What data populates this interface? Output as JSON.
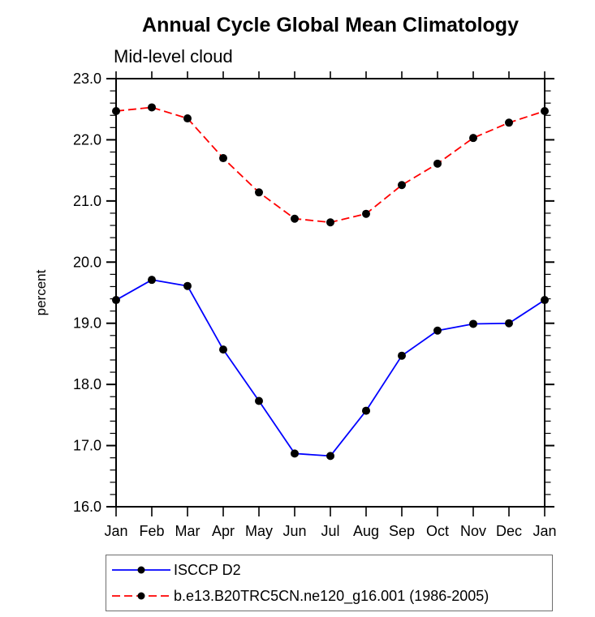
{
  "chart_data": {
    "type": "line",
    "title": "Annual Cycle Global Mean Climatology",
    "subtitle": "Mid-level cloud",
    "xlabel": "",
    "ylabel": "percent",
    "categories": [
      "Jan",
      "Feb",
      "Mar",
      "Apr",
      "May",
      "Jun",
      "Jul",
      "Aug",
      "Sep",
      "Oct",
      "Nov",
      "Dec",
      "Jan"
    ],
    "series": [
      {
        "name": "ISCCP D2",
        "color": "#0000ff",
        "line_style": "solid",
        "marker": "filled-circle",
        "marker_color": "#000000",
        "values": [
          19.38,
          19.71,
          19.61,
          18.57,
          17.73,
          16.87,
          16.83,
          17.57,
          18.47,
          18.88,
          18.99,
          19.0,
          19.38
        ]
      },
      {
        "name": "b.e13.B20TRC5CN.ne120_g16.001 (1986-2005)",
        "color": "#ff0000",
        "line_style": "dashed",
        "marker": "filled-circle",
        "marker_color": "#000000",
        "values": [
          22.47,
          22.53,
          22.35,
          21.7,
          21.14,
          20.71,
          20.65,
          20.79,
          21.26,
          21.61,
          22.03,
          22.28,
          22.47
        ]
      }
    ],
    "ylim": [
      16.0,
      23.0
    ],
    "ytick_major_step": 1.0,
    "ytick_minor_step": 0.2,
    "ytick_labels": [
      "16.0",
      "17.0",
      "18.0",
      "19.0",
      "20.0",
      "21.0",
      "22.0",
      "23.0"
    ],
    "grid": false,
    "axis_color": "#000000",
    "legend_position": "bottom-left"
  }
}
